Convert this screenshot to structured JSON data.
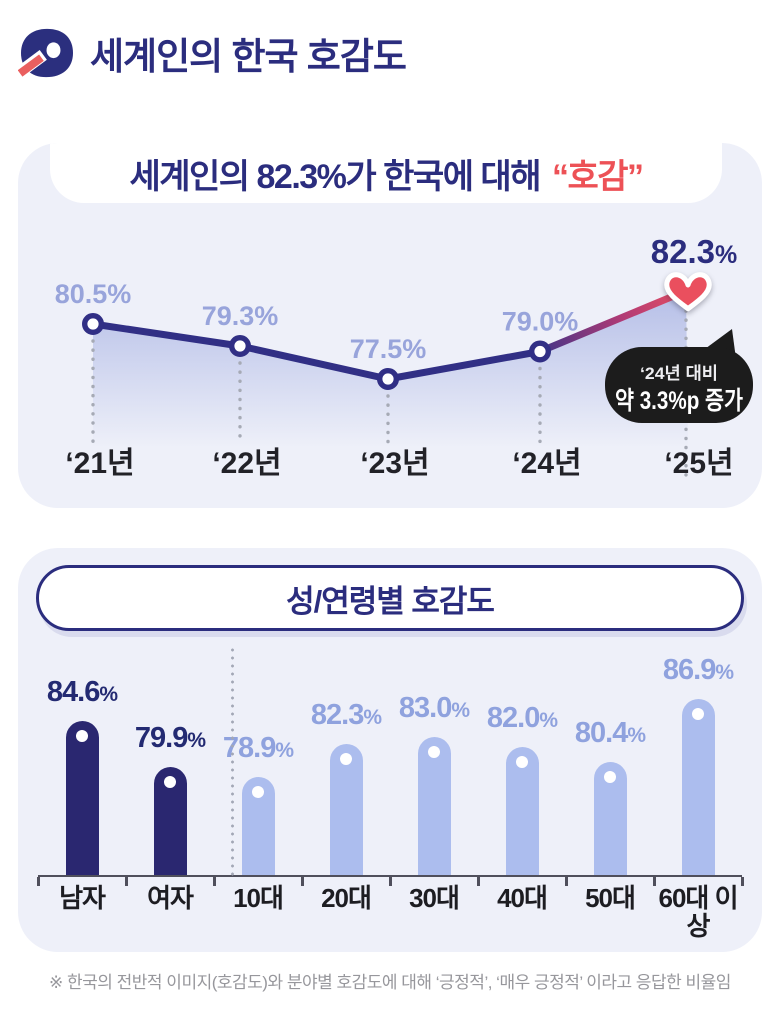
{
  "header": {
    "title": "세계인의 한국 호감도"
  },
  "line_card": {
    "title_prefix": "세계인의 82.3%가 한국에 대해",
    "title_highlight": "“호감”",
    "callout": {
      "line1": "‘24년 대비",
      "line2": "약 3.3%p 증가"
    }
  },
  "bar_card": {
    "title": "성/연령별 호감도"
  },
  "footnote": "※ 한국의 전반적 이미지(호감도)와 분야별 호감도에 대해 ‘긍정적’, ‘매우 긍정적’ 이라고 응답한 비율임",
  "chart_data": [
    {
      "type": "line",
      "title": "세계인의 82.3%가 한국에 대해 “호감”",
      "x": [
        "‘21년",
        "‘22년",
        "‘23년",
        "‘24년",
        "‘25년"
      ],
      "values": [
        80.5,
        79.3,
        77.5,
        79.0,
        82.3
      ],
      "value_labels": [
        "80.5%",
        "79.3%",
        "77.5%",
        "79.0%",
        "82.3%"
      ],
      "highlight_index": 4,
      "highlight_marker": "heart-icon",
      "annotation": "‘24년 대비 약 3.3%p 증가",
      "grid": false,
      "legend": false,
      "ylim": [
        76,
        84
      ]
    },
    {
      "type": "bar",
      "title": "성/연령별 호감도",
      "categories": [
        "남자",
        "여자",
        "10대",
        "20대",
        "30대",
        "40대",
        "50대",
        "60대 이상"
      ],
      "values": [
        84.6,
        79.9,
        78.9,
        82.3,
        83.0,
        82.0,
        80.4,
        86.9
      ],
      "group_split_after_index": 1,
      "grid": false,
      "legend": false
    }
  ],
  "colors": {
    "navy": "#2b2d7e",
    "line_navy": "#312f85",
    "red_accent": "#ed5156",
    "heart_red": "#ea4f5e",
    "bar_dark": "#2a2770",
    "bar_light": "#acbdee",
    "label_light": "#98a4db",
    "card_bg": "#eef0f9",
    "callout_bg": "#1c1c1c",
    "footnote_gray": "#97979c"
  }
}
